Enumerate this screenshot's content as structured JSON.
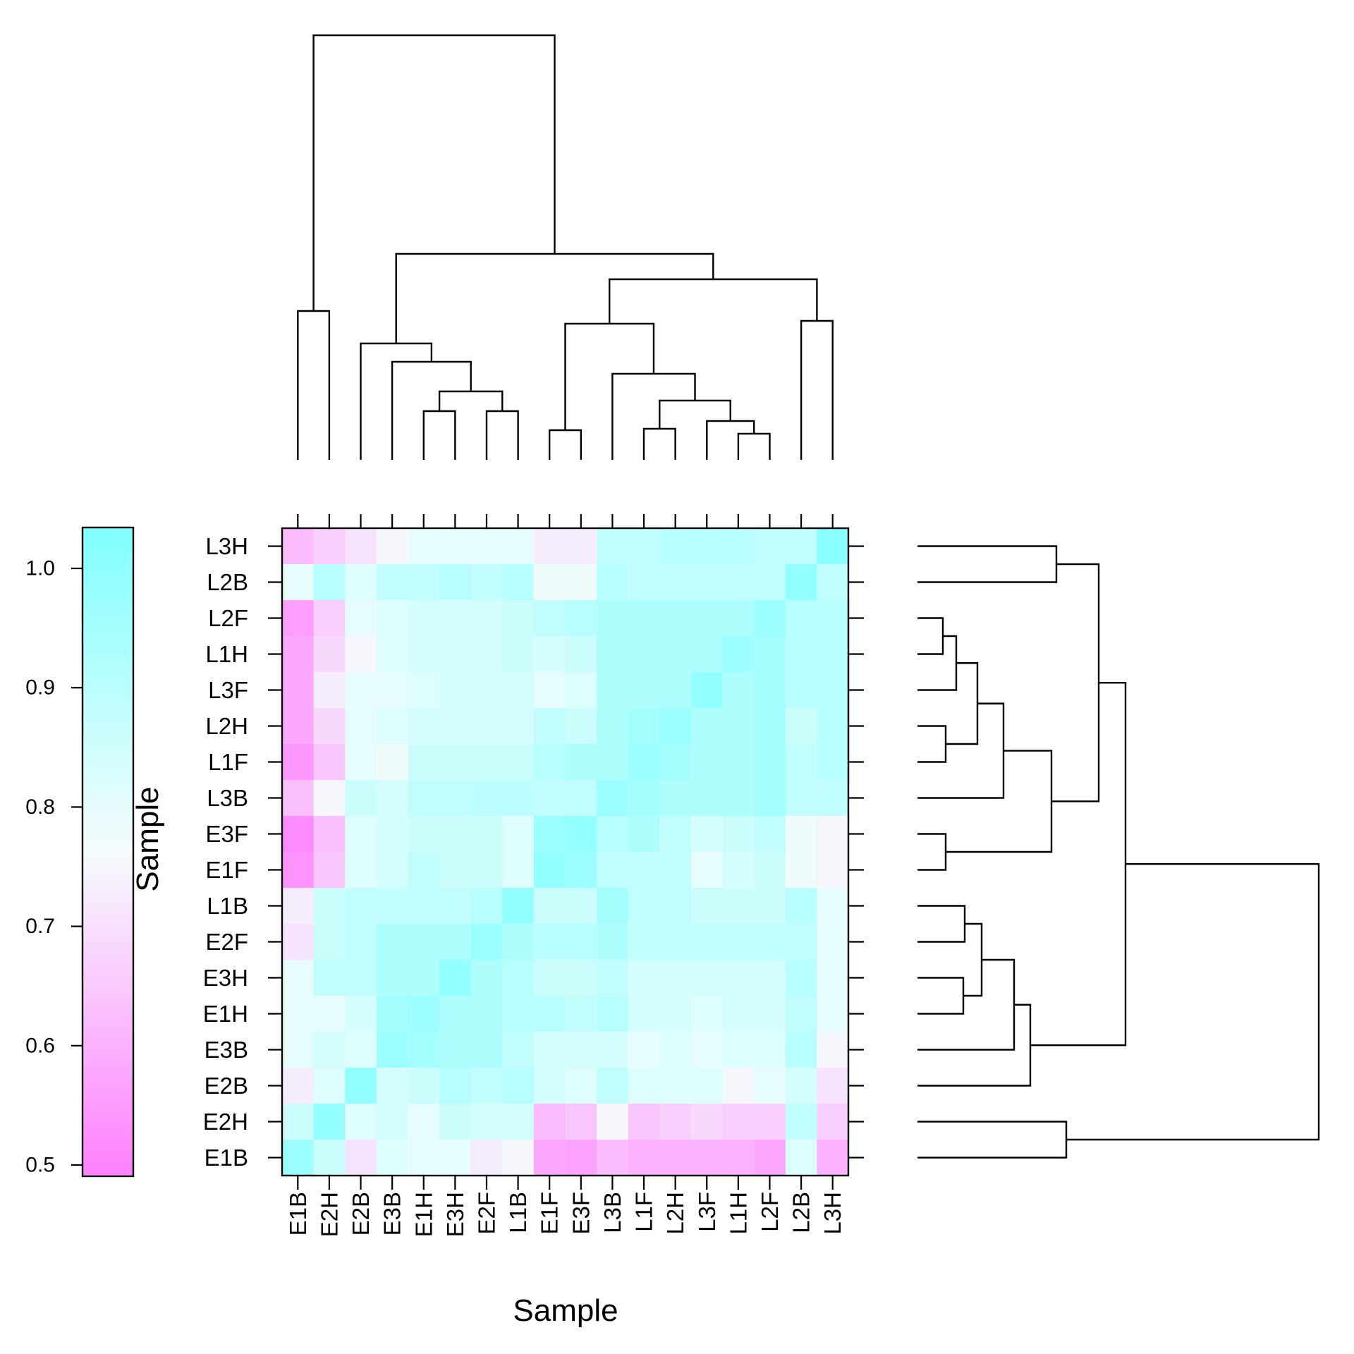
{
  "chart_data": {
    "type": "heatmap",
    "xlabel": "Sample",
    "ylabel": "Sample",
    "x_categories": [
      "E1B",
      "E2H",
      "E2B",
      "E3B",
      "E1H",
      "E3H",
      "E2F",
      "L1B",
      "E1F",
      "E3F",
      "L3B",
      "L1F",
      "L2H",
      "L3F",
      "L1H",
      "L2F",
      "L2B",
      "L3H"
    ],
    "y_categories_top_to_bottom": [
      "L3H",
      "L2B",
      "L2F",
      "L1H",
      "L3F",
      "L2H",
      "L1F",
      "L3B",
      "E3F",
      "E1F",
      "L1B",
      "E2F",
      "E3H",
      "E1H",
      "E3B",
      "E2B",
      "E2H",
      "E1B"
    ],
    "values": [
      [
        0.62,
        0.66,
        0.7,
        0.74,
        0.78,
        0.78,
        0.78,
        0.78,
        0.72,
        0.72,
        0.86,
        0.86,
        0.88,
        0.88,
        0.88,
        0.86,
        0.86,
        0.98
      ],
      [
        0.78,
        0.88,
        0.8,
        0.86,
        0.86,
        0.88,
        0.86,
        0.88,
        0.76,
        0.76,
        0.88,
        0.86,
        0.86,
        0.86,
        0.86,
        0.86,
        0.96,
        0.86
      ],
      [
        0.56,
        0.66,
        0.78,
        0.8,
        0.82,
        0.82,
        0.82,
        0.84,
        0.86,
        0.88,
        0.9,
        0.9,
        0.9,
        0.9,
        0.9,
        0.94,
        0.88,
        0.88
      ],
      [
        0.58,
        0.68,
        0.74,
        0.8,
        0.82,
        0.82,
        0.82,
        0.84,
        0.82,
        0.84,
        0.9,
        0.9,
        0.9,
        0.9,
        0.94,
        0.92,
        0.88,
        0.88
      ],
      [
        0.58,
        0.72,
        0.78,
        0.78,
        0.8,
        0.82,
        0.82,
        0.82,
        0.78,
        0.8,
        0.9,
        0.9,
        0.9,
        0.96,
        0.9,
        0.92,
        0.88,
        0.88
      ],
      [
        0.58,
        0.68,
        0.78,
        0.8,
        0.82,
        0.82,
        0.82,
        0.82,
        0.86,
        0.84,
        0.9,
        0.92,
        0.94,
        0.9,
        0.9,
        0.92,
        0.84,
        0.88
      ],
      [
        0.55,
        0.64,
        0.78,
        0.76,
        0.84,
        0.84,
        0.84,
        0.84,
        0.88,
        0.9,
        0.9,
        0.94,
        0.92,
        0.9,
        0.9,
        0.92,
        0.86,
        0.88
      ],
      [
        0.63,
        0.74,
        0.84,
        0.82,
        0.86,
        0.86,
        0.87,
        0.87,
        0.86,
        0.86,
        0.94,
        0.92,
        0.9,
        0.9,
        0.9,
        0.92,
        0.86,
        0.86
      ],
      [
        0.52,
        0.63,
        0.8,
        0.82,
        0.84,
        0.84,
        0.84,
        0.8,
        0.94,
        0.96,
        0.88,
        0.9,
        0.86,
        0.82,
        0.84,
        0.86,
        0.76,
        0.74
      ],
      [
        0.54,
        0.64,
        0.8,
        0.82,
        0.86,
        0.84,
        0.84,
        0.8,
        0.96,
        0.94,
        0.86,
        0.86,
        0.86,
        0.78,
        0.82,
        0.84,
        0.76,
        0.74
      ],
      [
        0.72,
        0.84,
        0.86,
        0.86,
        0.86,
        0.86,
        0.88,
        0.96,
        0.84,
        0.84,
        0.92,
        0.86,
        0.86,
        0.84,
        0.84,
        0.84,
        0.88,
        0.78
      ],
      [
        0.7,
        0.84,
        0.86,
        0.9,
        0.9,
        0.9,
        0.94,
        0.9,
        0.88,
        0.88,
        0.9,
        0.86,
        0.86,
        0.86,
        0.86,
        0.86,
        0.86,
        0.78
      ],
      [
        0.78,
        0.86,
        0.86,
        0.9,
        0.9,
        0.96,
        0.9,
        0.88,
        0.84,
        0.84,
        0.86,
        0.82,
        0.82,
        0.82,
        0.82,
        0.82,
        0.88,
        0.78
      ],
      [
        0.78,
        0.78,
        0.82,
        0.92,
        0.94,
        0.9,
        0.9,
        0.88,
        0.88,
        0.86,
        0.88,
        0.82,
        0.82,
        0.8,
        0.82,
        0.82,
        0.86,
        0.78
      ],
      [
        0.78,
        0.82,
        0.8,
        0.94,
        0.92,
        0.9,
        0.9,
        0.86,
        0.82,
        0.82,
        0.82,
        0.78,
        0.8,
        0.78,
        0.8,
        0.8,
        0.88,
        0.74
      ],
      [
        0.72,
        0.8,
        0.96,
        0.82,
        0.84,
        0.88,
        0.86,
        0.88,
        0.82,
        0.8,
        0.86,
        0.8,
        0.8,
        0.8,
        0.74,
        0.78,
        0.82,
        0.7
      ],
      [
        0.84,
        0.96,
        0.8,
        0.82,
        0.78,
        0.84,
        0.82,
        0.82,
        0.62,
        0.64,
        0.74,
        0.64,
        0.66,
        0.68,
        0.66,
        0.66,
        0.86,
        0.66
      ],
      [
        0.94,
        0.84,
        0.7,
        0.8,
        0.78,
        0.78,
        0.72,
        0.74,
        0.58,
        0.57,
        0.62,
        0.6,
        0.6,
        0.6,
        0.6,
        0.58,
        0.8,
        0.6
      ]
    ],
    "colorbar": {
      "range": [
        0.5,
        1.0
      ],
      "ticks": [
        "0.5",
        "0.6",
        "0.7",
        "0.8",
        "0.9",
        "1.0"
      ],
      "low_color": "#ff80ff",
      "mid_color": "#f5fcfc",
      "high_color": "#80ffff"
    },
    "top_dendrogram": true,
    "right_dendrogram": true
  }
}
